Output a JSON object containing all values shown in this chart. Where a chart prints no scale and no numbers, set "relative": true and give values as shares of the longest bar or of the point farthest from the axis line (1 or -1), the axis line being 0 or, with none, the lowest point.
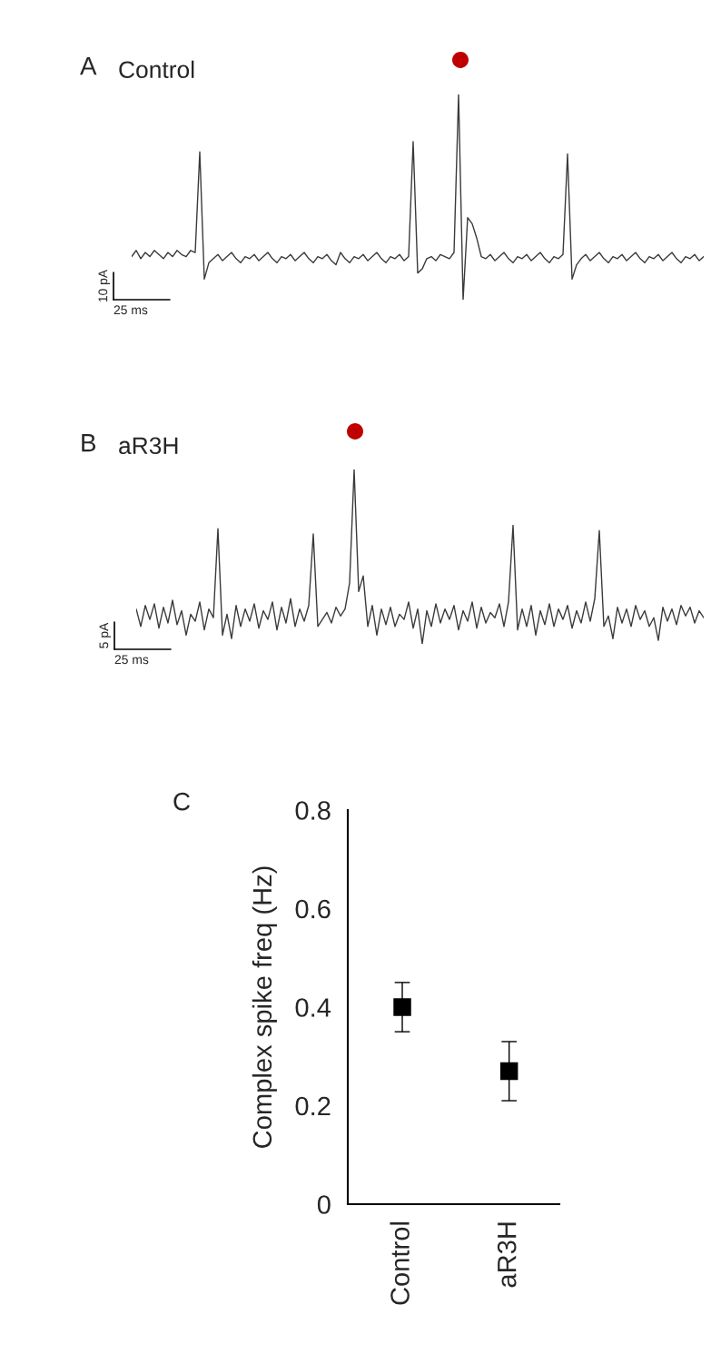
{
  "chart_data": [
    {
      "type": "line",
      "title": "A",
      "subtitle": "Control",
      "relative": true,
      "annotations": [
        "10 pA",
        "25 ms"
      ],
      "categories": [
        null,
        null,
        null,
        null,
        null,
        null,
        null,
        null,
        null,
        null,
        null,
        null,
        null,
        null,
        null,
        null,
        null,
        null,
        null,
        null,
        null,
        null,
        null,
        null,
        null,
        null,
        null,
        null,
        null,
        null,
        null,
        null,
        null,
        null,
        null,
        null,
        null,
        null,
        null,
        null,
        null,
        null,
        null,
        null,
        null,
        null,
        null,
        null,
        null,
        null,
        null,
        null,
        null,
        null,
        null,
        null,
        null,
        null,
        null,
        null,
        null,
        null,
        null,
        null,
        null,
        null,
        null,
        null,
        null,
        null,
        null,
        null,
        null,
        null,
        null,
        null,
        null,
        null,
        null,
        null,
        null,
        null,
        null,
        null,
        null,
        null,
        null,
        null,
        null,
        null,
        null,
        null,
        null,
        null,
        null,
        null,
        null,
        null,
        null,
        null,
        null,
        null,
        null,
        null,
        null,
        null,
        null,
        null,
        null,
        null,
        null,
        null,
        null,
        null,
        null,
        null,
        null,
        null,
        null,
        null,
        null,
        null,
        null,
        null,
        null,
        null,
        null
      ],
      "series": [
        {
          "color": "#3a3a3a",
          "values": [
            0.21,
            0.24,
            0.2,
            0.23,
            0.21,
            0.24,
            0.22,
            0.2,
            0.23,
            0.21,
            0.24,
            0.22,
            0.21,
            0.24,
            0.23,
            0.72,
            0.1,
            0.18,
            0.2,
            0.22,
            0.19,
            0.21,
            0.23,
            0.2,
            0.18,
            0.21,
            0.2,
            0.22,
            0.19,
            0.21,
            0.23,
            0.2,
            0.18,
            0.21,
            0.2,
            0.22,
            0.19,
            0.21,
            0.23,
            0.2,
            0.18,
            0.21,
            0.2,
            0.22,
            0.19,
            0.17,
            0.23,
            0.2,
            0.18,
            0.21,
            0.2,
            0.22,
            0.19,
            0.21,
            0.23,
            0.2,
            0.18,
            0.21,
            0.2,
            0.22,
            0.19,
            0.21,
            0.77,
            0.13,
            0.15,
            0.2,
            0.21,
            0.19,
            0.22,
            0.21,
            0.2,
            0.23,
            1.0,
            0.0,
            0.4,
            0.37,
            0.3,
            0.21,
            0.2,
            0.22,
            0.19,
            0.21,
            0.23,
            0.2,
            0.18,
            0.21,
            0.2,
            0.22,
            0.19,
            0.21,
            0.23,
            0.2,
            0.18,
            0.21,
            0.2,
            0.22,
            0.71,
            0.1,
            0.17,
            0.2,
            0.22,
            0.19,
            0.21,
            0.23,
            0.2,
            0.18,
            0.21,
            0.2,
            0.22,
            0.19,
            0.21,
            0.23,
            0.2,
            0.18,
            0.21,
            0.2,
            0.22,
            0.19,
            0.21,
            0.23,
            0.2,
            0.18,
            0.21,
            0.2,
            0.22,
            0.19,
            0.21
          ]
        }
      ]
    },
    {
      "type": "line",
      "title": "B",
      "subtitle": "aR3H",
      "relative": true,
      "annotations": [
        "5 pA",
        "25 ms"
      ],
      "categories": [
        null,
        null,
        null,
        null,
        null,
        null,
        null,
        null,
        null,
        null,
        null,
        null,
        null,
        null,
        null,
        null,
        null,
        null,
        null,
        null,
        null,
        null,
        null,
        null,
        null,
        null,
        null,
        null,
        null,
        null,
        null,
        null,
        null,
        null,
        null,
        null,
        null,
        null,
        null,
        null,
        null,
        null,
        null,
        null,
        null,
        null,
        null,
        null,
        null,
        null,
        null,
        null,
        null,
        null,
        null,
        null,
        null,
        null,
        null,
        null,
        null,
        null,
        null,
        null,
        null,
        null,
        null,
        null,
        null,
        null,
        null,
        null,
        null,
        null,
        null,
        null,
        null,
        null,
        null,
        null,
        null,
        null,
        null,
        null,
        null,
        null,
        null,
        null,
        null,
        null,
        null,
        null,
        null,
        null,
        null,
        null,
        null,
        null,
        null,
        null,
        null,
        null,
        null,
        null,
        null,
        null,
        null,
        null,
        null,
        null,
        null,
        null,
        null,
        null,
        null,
        null,
        null,
        null,
        null,
        null,
        null,
        null,
        null,
        null,
        null,
        null
      ],
      "series": [
        {
          "color": "#3a3a3a",
          "values": [
            0.2,
            0.1,
            0.22,
            0.14,
            0.23,
            0.09,
            0.21,
            0.12,
            0.25,
            0.11,
            0.19,
            0.05,
            0.17,
            0.13,
            0.24,
            0.08,
            0.2,
            0.15,
            0.66,
            0.05,
            0.17,
            0.03,
            0.22,
            0.1,
            0.2,
            0.13,
            0.23,
            0.09,
            0.19,
            0.14,
            0.24,
            0.08,
            0.21,
            0.12,
            0.26,
            0.1,
            0.2,
            0.13,
            0.22,
            0.63,
            0.1,
            0.14,
            0.18,
            0.12,
            0.21,
            0.16,
            0.2,
            0.35,
            1.0,
            0.3,
            0.39,
            0.1,
            0.22,
            0.05,
            0.2,
            0.11,
            0.21,
            0.1,
            0.17,
            0.14,
            0.24,
            0.09,
            0.2,
            0.0,
            0.19,
            0.1,
            0.23,
            0.12,
            0.2,
            0.14,
            0.22,
            0.08,
            0.19,
            0.13,
            0.24,
            0.09,
            0.21,
            0.12,
            0.18,
            0.15,
            0.23,
            0.1,
            0.24,
            0.68,
            0.08,
            0.2,
            0.1,
            0.22,
            0.05,
            0.19,
            0.11,
            0.23,
            0.1,
            0.2,
            0.14,
            0.22,
            0.09,
            0.19,
            0.12,
            0.24,
            0.13,
            0.26,
            0.65,
            0.1,
            0.16,
            0.03,
            0.21,
            0.12,
            0.2,
            0.1,
            0.22,
            0.14,
            0.19,
            0.1,
            0.15,
            0.02,
            0.21,
            0.13,
            0.2,
            0.11,
            0.22,
            0.16,
            0.21,
            0.12,
            0.19,
            0.15
          ]
        }
      ]
    },
    {
      "type": "scatter",
      "title": "C",
      "categories": [
        "Control",
        "aR3H"
      ],
      "values": [
        0.4,
        0.27
      ],
      "errors": [
        [
          0.35,
          0.45
        ],
        [
          0.21,
          0.33
        ]
      ],
      "color": "#000000",
      "marker": "square",
      "ylabel": "Complex spike freq (Hz)",
      "ylim": [
        0,
        0.8
      ],
      "yticks": [
        0,
        0.2,
        0.4,
        0.6,
        0.8
      ],
      "grid": false
    }
  ]
}
